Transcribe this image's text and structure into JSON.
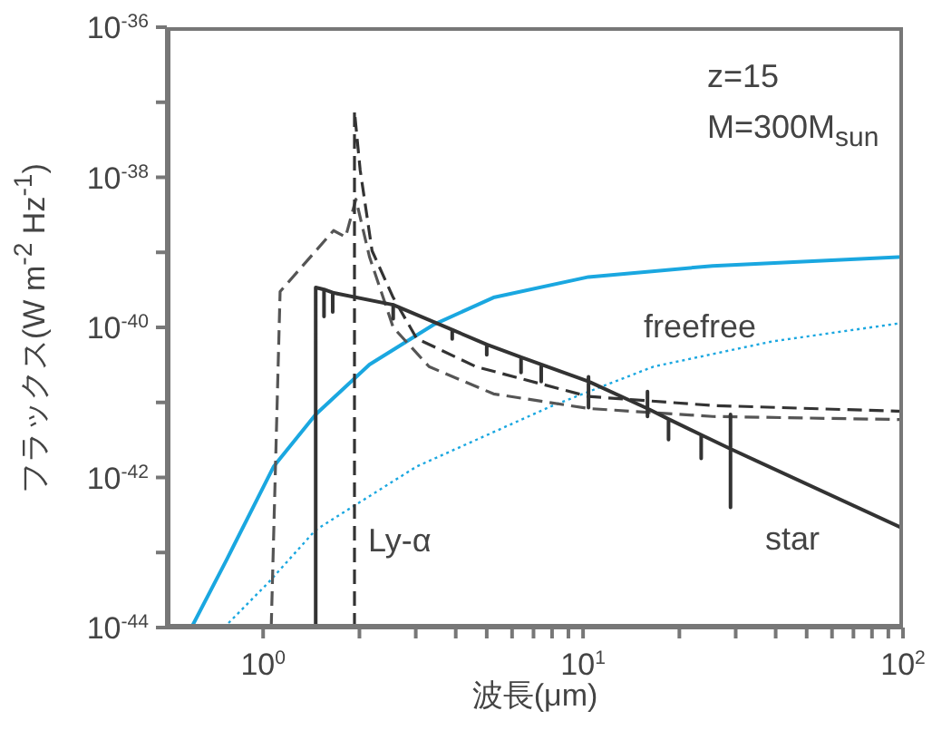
{
  "chart_data": {
    "type": "line",
    "xlabel": "波長(μm)",
    "ylabel": "フラックス(W m$^{-2}$ Hz$^{-1}$)",
    "log": "xy",
    "marker": "none",
    "xlim": [
      0.5,
      100
    ],
    "ylim": [
      1e-44,
      1e-36
    ],
    "xticks": [
      {
        "value": 1,
        "label": "10$^{0}$"
      },
      {
        "value": 2,
        "label": null
      },
      {
        "value": 3,
        "label": null
      },
      {
        "value": 4,
        "label": null
      },
      {
        "value": 5,
        "label": null
      },
      {
        "value": 6,
        "label": null
      },
      {
        "value": 7,
        "label": null
      },
      {
        "value": 8,
        "label": null
      },
      {
        "value": 9,
        "label": null
      },
      {
        "value": 10,
        "label": "10$^{1}$"
      },
      {
        "value": 20,
        "label": null
      },
      {
        "value": 30,
        "label": null
      },
      {
        "value": 40,
        "label": null
      },
      {
        "value": 50,
        "label": null
      },
      {
        "value": 60,
        "label": null
      },
      {
        "value": 70,
        "label": null
      },
      {
        "value": 80,
        "label": null
      },
      {
        "value": 90,
        "label": null
      },
      {
        "value": 100,
        "label": "10$^{2}$"
      }
    ],
    "yticks": [
      {
        "value": 1e-44,
        "label": "10$^{-44}$"
      },
      {
        "value": 1e-43,
        "label": null
      },
      {
        "value": 1e-42,
        "label": "10$^{-42}$"
      },
      {
        "value": 1e-41,
        "label": null
      },
      {
        "value": 1e-40,
        "label": "10$^{-40}$"
      },
      {
        "value": 1e-39,
        "label": null
      },
      {
        "value": 1e-38,
        "label": "10$^{-38}$"
      },
      {
        "value": 1e-37,
        "label": null
      },
      {
        "value": 1e-36,
        "label": "10$^{-36}$"
      }
    ],
    "series": [
      {
        "color": "#1aa7e0",
        "line_style": "solid",
        "x": [
          0.597,
          0.77,
          1.08,
          1.46,
          2.15,
          3.43,
          5.25,
          10.4,
          25.4,
          100
        ],
        "values": [
          1e-44,
          8.1e-44,
          1.41e-42,
          6.9e-42,
          3.2e-41,
          1.1e-40,
          2.5e-40,
          4.7e-40,
          6.6e-40,
          8.7e-40
        ]
      },
      {
        "color": "#1aa7e0",
        "line_style": "dotted",
        "x": [
          0.755,
          1.04,
          1.46,
          3.02,
          8.05,
          16.6,
          39,
          100
        ],
        "values": [
          1e-44,
          4e-44,
          2e-43,
          1.4e-42,
          9.1e-42,
          3e-41,
          6.5e-41,
          1.15e-40
        ]
      },
      {
        "color": "#555555",
        "line_style": "dashed",
        "x": [
          1.06,
          1.13,
          1.66,
          1.81,
          1.95,
          2.15,
          2.55,
          3.3,
          5.25,
          10.4,
          25.4,
          100
        ],
        "values": [
          1e-44,
          3e-40,
          1.95e-39,
          1.6e-39,
          5.1e-39,
          8.7e-40,
          1e-40,
          3e-41,
          1.3e-41,
          8.3e-42,
          6.5e-42,
          5.9e-42
        ]
      },
      {
        "color": "#333333",
        "line_style": "dashed",
        "x": [
          1.93,
          1.93,
          2.01,
          2.19,
          2.55,
          3.02,
          4.62,
          10.4,
          25.4,
          100
        ],
        "values": [
          1e-44,
          7.6e-38,
          1.26e-38,
          1.05e-39,
          2.5e-40,
          7.1e-41,
          3e-41,
          1.2e-41,
          9.1e-42,
          7.6e-42
        ]
      },
      {
        "color": "#333333",
        "line_style": "solid",
        "x": [
          1.46,
          1.46,
          1.55,
          1.55,
          1.55,
          1.65,
          1.65,
          1.65,
          2.55,
          2.55,
          2.55,
          3.9,
          3.9,
          3.9,
          5.0,
          5.0,
          5.0,
          6.4,
          6.4,
          6.4,
          7.4,
          7.4,
          7.4,
          10.4,
          10.4,
          10.4,
          10.4,
          15.9,
          15.9,
          15.9,
          15.9,
          18.5,
          18.5,
          18.5,
          23.4,
          23.4,
          23.4,
          28.9,
          28.9,
          28.9,
          28.9,
          100
        ],
        "values": [
          1e-44,
          3.4e-40,
          3.2e-40,
          1.4e-40,
          3.2e-40,
          2.9e-40,
          1.6e-40,
          2.9e-40,
          2e-40,
          1.3e-40,
          2e-40,
          9.3e-41,
          7e-41,
          9.3e-41,
          5.9e-41,
          4.3e-41,
          5.9e-41,
          4e-41,
          2.5e-41,
          4e-41,
          3.2e-41,
          1.9e-41,
          3.2e-41,
          1.9e-41,
          2.2e-41,
          8.5e-42,
          1.9e-41,
          8.3e-42,
          1.4e-41,
          6.5e-42,
          8.3e-42,
          6e-42,
          3.2e-42,
          6e-42,
          3.7e-42,
          1.8e-42,
          3.7e-42,
          2.4e-42,
          6.9e-42,
          4e-43,
          2.4e-42,
          2.1e-43
        ]
      }
    ],
    "annotations": [
      "z=15",
      "M=300M$_{sun}$",
      "freefree",
      "star",
      "Ly-α"
    ]
  }
}
